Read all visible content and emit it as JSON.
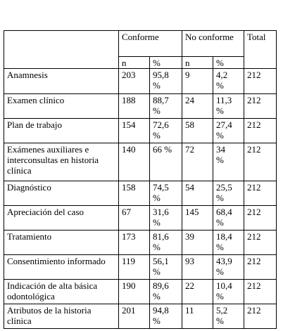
{
  "table": {
    "header": {
      "conforme": "Conforme",
      "no_conforme": "No conforme",
      "total": "Total",
      "n1": "n",
      "pct1": "%",
      "n2": "n",
      "pct2": "%"
    },
    "rows": [
      [
        "Anamnesis",
        203,
        "95,8 %",
        9,
        "4,2 %",
        212
      ],
      [
        "Examen clínico",
        188,
        "88,7 %",
        24,
        "11,3 %",
        212
      ],
      [
        "Plan de trabajo",
        154,
        "72,6 %",
        58,
        "27,4 %",
        212
      ],
      [
        "Exámenes auxiliares e interconsultas en historia clínica",
        140,
        "66 %",
        72,
        "34 %",
        212
      ],
      [
        "Diagnóstico",
        158,
        "74,5 %",
        54,
        "25,5 %",
        212
      ],
      [
        "Apreciación del caso",
        67,
        "31,6 %",
        145,
        "68,4 %",
        212
      ],
      [
        "Tratamiento",
        173,
        "81,6 %",
        39,
        "18,4 %",
        212
      ],
      [
        "Consentimiento informado",
        119,
        "56,1 %",
        93,
        "43,9 %",
        212
      ],
      [
        "Indicación de alta básica odontológica",
        190,
        "89,6 %",
        22,
        "10,4 %",
        212
      ],
      [
        "Atributos de la historia clínica",
        201,
        "94,8 %",
        11,
        "5,2 %",
        212
      ]
    ]
  }
}
